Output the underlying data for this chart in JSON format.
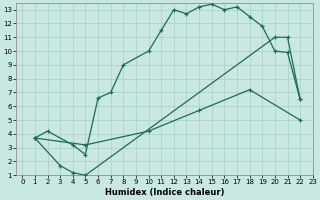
{
  "xlabel": "Humidex (Indice chaleur)",
  "xlim": [
    -0.5,
    23
  ],
  "ylim": [
    1,
    13.5
  ],
  "xticks": [
    0,
    1,
    2,
    3,
    4,
    5,
    6,
    7,
    8,
    9,
    10,
    11,
    12,
    13,
    14,
    15,
    16,
    17,
    18,
    19,
    20,
    21,
    22,
    23
  ],
  "yticks": [
    1,
    2,
    3,
    4,
    5,
    6,
    7,
    8,
    9,
    10,
    11,
    12,
    13
  ],
  "background_color": "#c9e8e2",
  "grid_color": "#a8cfc8",
  "line_color": "#1a6b5a",
  "curve1_x": [
    1,
    2,
    4,
    5,
    6,
    7,
    8,
    10,
    11,
    12,
    13,
    14,
    15,
    16,
    17,
    18,
    19,
    20,
    21,
    22
  ],
  "curve1_y": [
    3.7,
    4.2,
    3.2,
    2.5,
    6.6,
    7.0,
    9.0,
    10.0,
    11.5,
    13.0,
    12.7,
    13.2,
    13.4,
    13.0,
    13.2,
    12.5,
    11.8,
    10.0,
    9.9,
    6.5
  ],
  "curve2_x": [
    1,
    3,
    4,
    5,
    20,
    21,
    22
  ],
  "curve2_y": [
    3.7,
    1.7,
    1.2,
    1.0,
    11.0,
    11.0,
    6.5
  ],
  "curve3_x": [
    1,
    5,
    10,
    14,
    18,
    22
  ],
  "curve3_y": [
    3.7,
    3.2,
    4.2,
    5.7,
    7.2,
    5.0
  ]
}
